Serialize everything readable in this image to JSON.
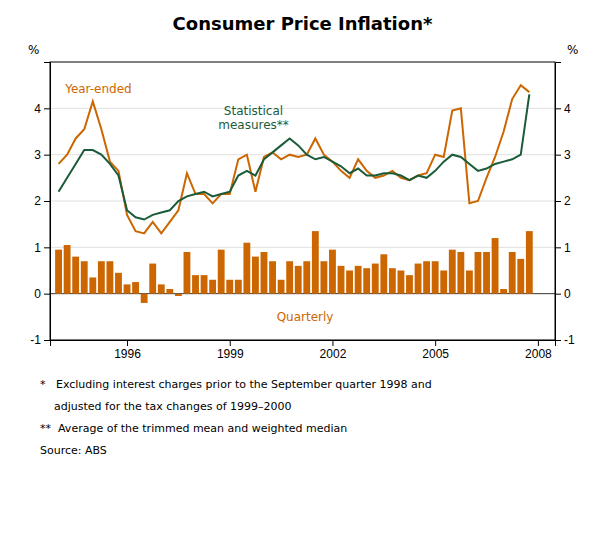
{
  "chart_data": {
    "type": "bar",
    "title": "Consumer Price Inflation*",
    "ylabel": "%",
    "y2label": "%",
    "x": [
      1994,
      1994.25,
      1994.5,
      1994.75,
      1995,
      1995.25,
      1995.5,
      1995.75,
      1996,
      1996.25,
      1996.5,
      1996.75,
      1997,
      1997.25,
      1997.5,
      1997.75,
      1998,
      1998.25,
      1998.5,
      1998.75,
      1999,
      1999.25,
      1999.5,
      1999.75,
      2000,
      2000.25,
      2000.5,
      2000.75,
      2001,
      2001.25,
      2001.5,
      2001.75,
      2002,
      2002.25,
      2002.5,
      2002.75,
      2003,
      2003.25,
      2003.5,
      2003.75,
      2004,
      2004.25,
      2004.5,
      2004.75,
      2005,
      2005.25,
      2005.5,
      2005.75,
      2006,
      2006.25,
      2006.5,
      2006.75,
      2007,
      2007.25,
      2007.5,
      2007.75
    ],
    "series": [
      {
        "name": "Quarterly",
        "type": "bar",
        "color": "#CC6600",
        "values": [
          0.95,
          1.05,
          0.8,
          0.7,
          0.35,
          0.7,
          0.7,
          0.45,
          0.2,
          0.25,
          -0.2,
          0.65,
          0.2,
          0.1,
          -0.05,
          0.9,
          0.4,
          0.4,
          0.3,
          0.95,
          0.3,
          0.3,
          1.1,
          0.8,
          0.9,
          0.7,
          0.3,
          0.7,
          0.6,
          0.7,
          1.35,
          0.7,
          0.95,
          0.6,
          0.5,
          0.6,
          0.55,
          0.65,
          0.85,
          0.55,
          0.5,
          0.4,
          0.65,
          0.7,
          0.7,
          0.5,
          0.95,
          0.9,
          0.5,
          0.9,
          0.9,
          1.2,
          0.1,
          0.9,
          0.75,
          1.35
        ]
      },
      {
        "name": "Year-ended",
        "type": "line",
        "color": "#CC6600",
        "values": [
          2.8,
          3.0,
          3.35,
          3.55,
          4.15,
          3.55,
          2.85,
          2.65,
          1.7,
          1.35,
          1.3,
          1.55,
          1.3,
          1.55,
          1.8,
          2.6,
          2.15,
          2.15,
          1.95,
          2.15,
          2.15,
          2.9,
          3.0,
          2.2,
          2.95,
          3.05,
          2.9,
          3.0,
          2.95,
          3.0,
          3.35,
          3.0,
          2.85,
          2.65,
          2.5,
          2.9,
          2.65,
          2.5,
          2.55,
          2.65,
          2.5,
          2.45,
          2.55,
          2.6,
          3.0,
          2.95,
          3.95,
          4.0,
          1.95,
          2.0,
          2.5,
          2.95,
          3.5,
          4.2,
          4.5,
          4.35
        ]
      },
      {
        "name": "Statistical\nmeasures**",
        "type": "line",
        "color": "#1A5C3A",
        "values": [
          2.2,
          2.5,
          2.8,
          3.1,
          3.1,
          3.0,
          2.8,
          2.55,
          1.8,
          1.65,
          1.6,
          1.7,
          1.75,
          1.8,
          2.0,
          2.1,
          2.15,
          2.2,
          2.1,
          2.15,
          2.2,
          2.55,
          2.65,
          2.55,
          2.9,
          3.05,
          3.2,
          3.35,
          3.2,
          3.0,
          2.9,
          2.95,
          2.85,
          2.75,
          2.6,
          2.7,
          2.55,
          2.55,
          2.6,
          2.6,
          2.55,
          2.45,
          2.55,
          2.5,
          2.65,
          2.85,
          3.0,
          2.95,
          2.8,
          2.65,
          2.7,
          2.8,
          2.85,
          2.9,
          3.0,
          4.3
        ]
      }
    ],
    "xlim": [
      1993.75,
      2008.5
    ],
    "xticks": [
      1996,
      1999,
      2002,
      2005,
      2008
    ],
    "ylim": [
      -1,
      5
    ],
    "yticks": [
      -1,
      0,
      1,
      2,
      3,
      4
    ],
    "y2lim": [
      -1,
      5
    ],
    "y2ticks": [
      -1,
      0,
      1,
      2,
      3,
      4
    ],
    "grid": true,
    "footnotes": [
      "*   Excluding interest charges prior to the September quarter 1998 and",
      "    adjusted for the tax changes of 1999–2000",
      "**  Average of the trimmed mean and weighted median",
      "Source: ABS"
    ]
  }
}
